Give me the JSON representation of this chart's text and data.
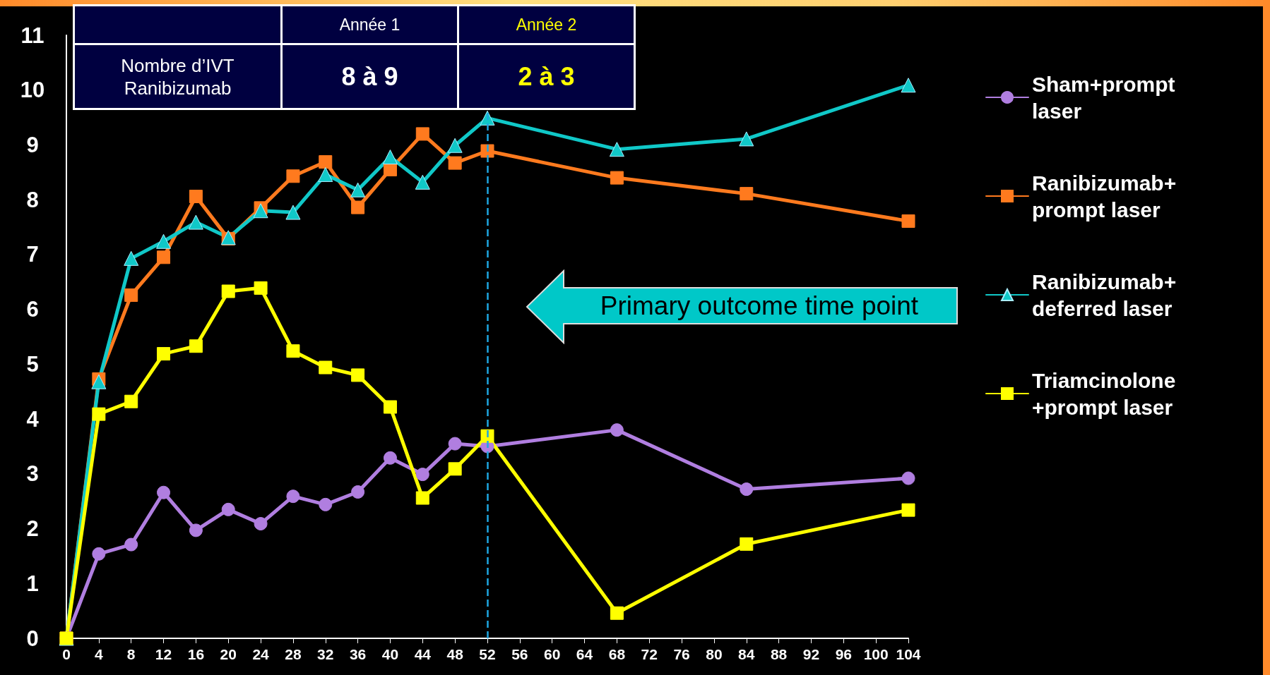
{
  "chart_data": {
    "type": "line",
    "x": [
      0,
      4,
      8,
      12,
      16,
      20,
      24,
      28,
      32,
      36,
      40,
      44,
      48,
      52,
      68,
      84,
      104
    ],
    "xlim": [
      0,
      104
    ],
    "xticks": [
      0,
      4,
      8,
      12,
      16,
      20,
      24,
      28,
      32,
      36,
      40,
      44,
      48,
      52,
      56,
      60,
      64,
      68,
      72,
      76,
      80,
      84,
      88,
      92,
      96,
      100,
      104
    ],
    "ylim": [
      0,
      11
    ],
    "yticks": [
      0,
      1,
      2,
      3,
      4,
      5,
      6,
      7,
      8,
      9,
      10,
      11
    ],
    "grid": false,
    "legend": "right",
    "series": [
      {
        "name": "Sham+prompt laser",
        "color": "#b07ee0",
        "marker": "circle",
        "values": [
          0,
          1.54,
          1.71,
          2.66,
          1.97,
          2.35,
          2.09,
          2.59,
          2.44,
          2.67,
          3.29,
          2.99,
          3.55,
          3.5,
          3.8,
          2.72,
          2.92
        ]
      },
      {
        "name": "Ranibizumab+prompt laser",
        "color": "#ff7a1e",
        "marker": "square",
        "values": [
          0,
          4.73,
          6.26,
          6.95,
          8.06,
          7.29,
          7.85,
          8.43,
          8.69,
          7.86,
          8.55,
          9.2,
          8.67,
          8.89,
          8.4,
          8.11,
          7.61
        ]
      },
      {
        "name": "Ranibizumab+deferred laser",
        "color": "#10c8c8",
        "marker": "triangle",
        "values": [
          0,
          4.68,
          6.93,
          7.24,
          7.59,
          7.31,
          7.8,
          7.77,
          8.46,
          8.18,
          8.78,
          8.32,
          8.99,
          9.49,
          8.92,
          9.11,
          10.09
        ]
      },
      {
        "name": "Triamcinolone +prompt laser",
        "color": "#ffff00",
        "marker": "square",
        "values": [
          0,
          4.09,
          4.32,
          5.19,
          5.33,
          6.33,
          6.39,
          5.24,
          4.94,
          4.8,
          4.22,
          2.56,
          3.09,
          3.69,
          0.46,
          1.72,
          2.34
        ]
      }
    ],
    "ref_lines": [
      {
        "axis": "x",
        "value": 52,
        "color": "#1ea7e1",
        "line_style": "dashed"
      }
    ],
    "annotations": [
      "Nombre d’IVT Ranibizumab",
      "Année 1",
      "Année 2",
      "8 à 9",
      "2 à 3",
      "Primary outcome time point"
    ]
  }
}
